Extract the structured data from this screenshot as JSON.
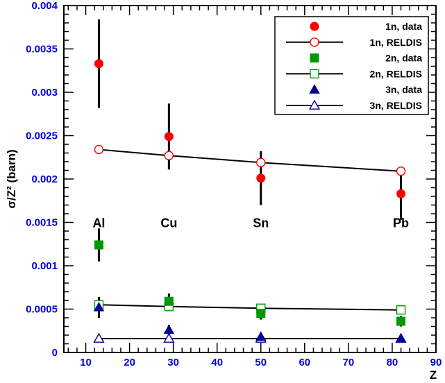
{
  "chart_data": {
    "type": "scatter",
    "title": "",
    "xlabel": "Z",
    "ylabel": "σ/Z² (barn)",
    "xlim": [
      5,
      90
    ],
    "ylim": [
      0,
      0.004
    ],
    "x_ticks": [
      "10",
      "20",
      "30",
      "40",
      "50",
      "60",
      "70",
      "80",
      "90"
    ],
    "y_ticks": [
      "0",
      "0.0005",
      "0.001",
      "0.0015",
      "0.002",
      "0.0025",
      "0.003",
      "0.0035",
      "0.004"
    ],
    "nucleus_labels": [
      {
        "text": "Al",
        "z": 13
      },
      {
        "text": "Cu",
        "z": 29
      },
      {
        "text": "Sn",
        "z": 50
      },
      {
        "text": "Pb",
        "z": 82
      }
    ],
    "nucleus_label_y": 0.0015,
    "legend_position": "top-right",
    "series": [
      {
        "name": "1n, data",
        "marker": "circle",
        "filled": true,
        "color": "#ff0000",
        "line": false,
        "x": [
          13,
          29,
          50,
          82
        ],
        "y": [
          0.00333,
          0.00249,
          0.00201,
          0.00183
        ],
        "err": [
          0.00051,
          0.00038,
          0.00031,
          0.0003
        ]
      },
      {
        "name": "1n, RELDIS",
        "marker": "circle",
        "filled": false,
        "color": "#ff0000",
        "line": true,
        "x": [
          13,
          29,
          50,
          82
        ],
        "y": [
          0.00234,
          0.00227,
          0.00219,
          0.00209
        ]
      },
      {
        "name": "2n, data",
        "marker": "square",
        "filled": true,
        "color": "#009900",
        "line": false,
        "x": [
          13,
          29,
          50,
          82
        ],
        "y": [
          0.00124,
          0.00059,
          0.00045,
          0.00036
        ],
        "err": [
          0.00019,
          9e-05,
          7e-05,
          6e-05
        ]
      },
      {
        "name": "2n, RELDIS",
        "marker": "square",
        "filled": false,
        "color": "#009900",
        "line": true,
        "x": [
          13,
          29,
          50,
          82
        ],
        "y": [
          0.00055,
          0.00053,
          0.00051,
          0.00049
        ]
      },
      {
        "name": "3n, data",
        "marker": "triangle",
        "filled": true,
        "color": "#000099",
        "line": false,
        "x": [
          13,
          29,
          50,
          82
        ],
        "y": [
          0.00052,
          0.00026,
          0.00018,
          0.00016
        ],
        "err": [
          0.00012,
          6e-05,
          5e-05,
          3e-05
        ]
      },
      {
        "name": "3n, RELDIS",
        "marker": "triangle",
        "filled": false,
        "color": "#000099",
        "line": true,
        "x": [
          13,
          29,
          50,
          82
        ],
        "y": [
          0.00016,
          0.00016,
          0.00016,
          0.00016
        ]
      }
    ]
  }
}
